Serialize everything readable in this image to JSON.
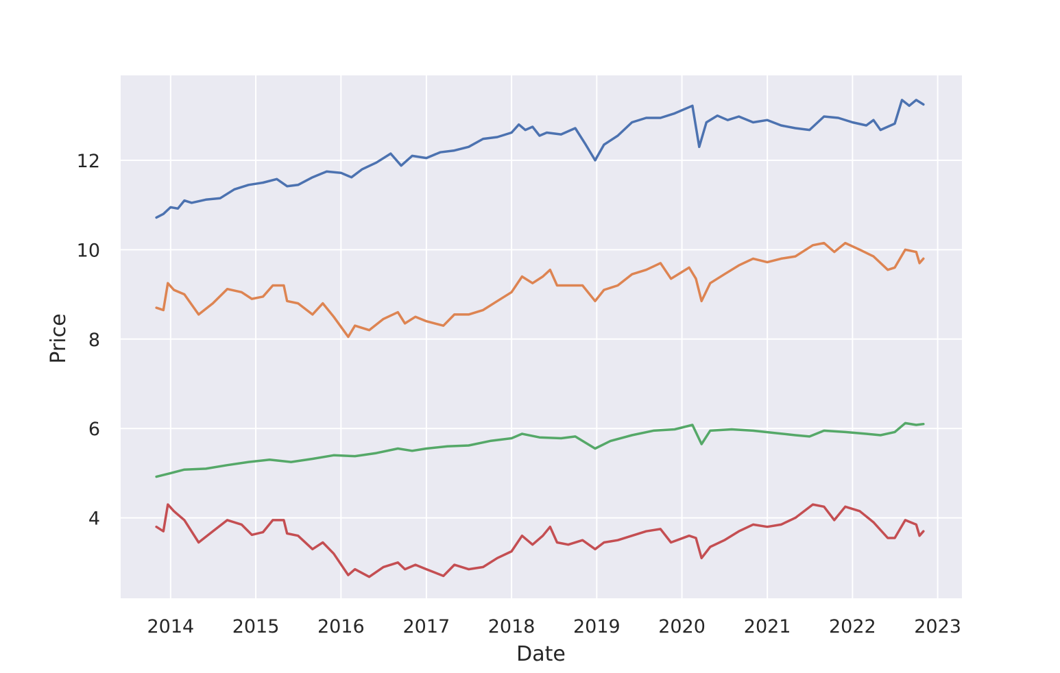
{
  "chart_data": {
    "type": "line",
    "title": "",
    "xlabel": "Date",
    "ylabel": "Price",
    "xlim": [
      "2013-06-01",
      "2023-04-15"
    ],
    "ylim": [
      2.2,
      13.9
    ],
    "grid": true,
    "legend": "none",
    "x_ticks": [
      "2014",
      "2015",
      "2016",
      "2017",
      "2018",
      "2019",
      "2020",
      "2021",
      "2022",
      "2023"
    ],
    "y_ticks": [
      "4",
      "6",
      "8",
      "10",
      "12"
    ],
    "colors": {
      "background": "#eaeaf2",
      "grid": "#ffffff",
      "series": [
        "#4c72b0",
        "#dd8452",
        "#55a868",
        "#c44e52"
      ]
    },
    "series": [
      {
        "points": [
          [
            "2013-11-01",
            10.72
          ],
          [
            "2013-12-01",
            10.8
          ],
          [
            "2014-01-01",
            10.95
          ],
          [
            "2014-02-01",
            10.92
          ],
          [
            "2014-03-01",
            11.1
          ],
          [
            "2014-04-01",
            11.05
          ],
          [
            "2014-06-01",
            11.12
          ],
          [
            "2014-08-01",
            11.15
          ],
          [
            "2014-10-01",
            11.35
          ],
          [
            "2014-12-01",
            11.45
          ],
          [
            "2015-02-01",
            11.5
          ],
          [
            "2015-04-01",
            11.58
          ],
          [
            "2015-05-15",
            11.42
          ],
          [
            "2015-07-01",
            11.45
          ],
          [
            "2015-09-01",
            11.62
          ],
          [
            "2015-11-01",
            11.75
          ],
          [
            "2016-01-01",
            11.72
          ],
          [
            "2016-02-15",
            11.62
          ],
          [
            "2016-04-01",
            11.8
          ],
          [
            "2016-06-01",
            11.95
          ],
          [
            "2016-08-01",
            12.15
          ],
          [
            "2016-09-15",
            11.88
          ],
          [
            "2016-11-01",
            12.1
          ],
          [
            "2017-01-01",
            12.05
          ],
          [
            "2017-03-01",
            12.18
          ],
          [
            "2017-05-01",
            12.22
          ],
          [
            "2017-07-01",
            12.3
          ],
          [
            "2017-09-01",
            12.48
          ],
          [
            "2017-11-01",
            12.52
          ],
          [
            "2018-01-01",
            12.62
          ],
          [
            "2018-02-01",
            12.8
          ],
          [
            "2018-03-01",
            12.68
          ],
          [
            "2018-04-01",
            12.75
          ],
          [
            "2018-05-01",
            12.55
          ],
          [
            "2018-06-01",
            12.62
          ],
          [
            "2018-08-01",
            12.58
          ],
          [
            "2018-10-01",
            12.72
          ],
          [
            "2018-11-15",
            12.35
          ],
          [
            "2018-12-25",
            12.0
          ],
          [
            "2019-02-01",
            12.35
          ],
          [
            "2019-04-01",
            12.55
          ],
          [
            "2019-06-01",
            12.85
          ],
          [
            "2019-08-01",
            12.95
          ],
          [
            "2019-10-01",
            12.95
          ],
          [
            "2019-12-01",
            13.05
          ],
          [
            "2020-02-15",
            13.22
          ],
          [
            "2020-03-15",
            12.3
          ],
          [
            "2020-04-15",
            12.85
          ],
          [
            "2020-06-01",
            13.0
          ],
          [
            "2020-07-15",
            12.9
          ],
          [
            "2020-09-01",
            12.98
          ],
          [
            "2020-11-01",
            12.85
          ],
          [
            "2021-01-01",
            12.9
          ],
          [
            "2021-03-01",
            12.78
          ],
          [
            "2021-05-01",
            12.72
          ],
          [
            "2021-07-01",
            12.68
          ],
          [
            "2021-09-01",
            12.98
          ],
          [
            "2021-11-01",
            12.95
          ],
          [
            "2022-01-01",
            12.85
          ],
          [
            "2022-03-01",
            12.78
          ],
          [
            "2022-04-01",
            12.9
          ],
          [
            "2022-05-01",
            12.68
          ],
          [
            "2022-07-01",
            12.82
          ],
          [
            "2022-08-01",
            13.35
          ],
          [
            "2022-09-01",
            13.22
          ],
          [
            "2022-10-01",
            13.35
          ],
          [
            "2022-11-01",
            13.25
          ]
        ]
      },
      {
        "points": [
          [
            "2013-11-01",
            8.7
          ],
          [
            "2013-12-01",
            8.65
          ],
          [
            "2013-12-20",
            9.25
          ],
          [
            "2014-01-15",
            9.1
          ],
          [
            "2014-03-01",
            9.0
          ],
          [
            "2014-05-01",
            8.55
          ],
          [
            "2014-07-01",
            8.8
          ],
          [
            "2014-09-01",
            9.12
          ],
          [
            "2014-11-01",
            9.05
          ],
          [
            "2014-12-15",
            8.9
          ],
          [
            "2015-02-01",
            8.95
          ],
          [
            "2015-03-15",
            9.2
          ],
          [
            "2015-05-01",
            9.2
          ],
          [
            "2015-05-15",
            8.85
          ],
          [
            "2015-07-01",
            8.8
          ],
          [
            "2015-09-01",
            8.55
          ],
          [
            "2015-10-15",
            8.8
          ],
          [
            "2015-12-01",
            8.5
          ],
          [
            "2016-02-01",
            8.05
          ],
          [
            "2016-03-01",
            8.3
          ],
          [
            "2016-05-01",
            8.2
          ],
          [
            "2016-07-01",
            8.45
          ],
          [
            "2016-09-01",
            8.6
          ],
          [
            "2016-10-01",
            8.35
          ],
          [
            "2016-11-15",
            8.5
          ],
          [
            "2017-01-01",
            8.4
          ],
          [
            "2017-03-15",
            8.3
          ],
          [
            "2017-05-01",
            8.55
          ],
          [
            "2017-07-01",
            8.55
          ],
          [
            "2017-09-01",
            8.65
          ],
          [
            "2017-11-01",
            8.85
          ],
          [
            "2018-01-01",
            9.05
          ],
          [
            "2018-02-15",
            9.4
          ],
          [
            "2018-04-01",
            9.25
          ],
          [
            "2018-05-15",
            9.4
          ],
          [
            "2018-06-15",
            9.55
          ],
          [
            "2018-07-15",
            9.2
          ],
          [
            "2018-09-01",
            9.2
          ],
          [
            "2018-11-01",
            9.2
          ],
          [
            "2018-12-25",
            8.85
          ],
          [
            "2019-02-01",
            9.1
          ],
          [
            "2019-04-01",
            9.2
          ],
          [
            "2019-06-01",
            9.45
          ],
          [
            "2019-08-01",
            9.55
          ],
          [
            "2019-10-01",
            9.7
          ],
          [
            "2019-11-15",
            9.35
          ],
          [
            "2020-02-01",
            9.6
          ],
          [
            "2020-03-01",
            9.35
          ],
          [
            "2020-03-25",
            8.85
          ],
          [
            "2020-05-01",
            9.25
          ],
          [
            "2020-07-01",
            9.45
          ],
          [
            "2020-09-01",
            9.65
          ],
          [
            "2020-11-01",
            9.8
          ],
          [
            "2021-01-01",
            9.72
          ],
          [
            "2021-03-01",
            9.8
          ],
          [
            "2021-05-01",
            9.85
          ],
          [
            "2021-07-15",
            10.1
          ],
          [
            "2021-09-01",
            10.15
          ],
          [
            "2021-10-15",
            9.95
          ],
          [
            "2021-12-01",
            10.15
          ],
          [
            "2022-02-01",
            10.0
          ],
          [
            "2022-04-01",
            9.85
          ],
          [
            "2022-06-01",
            9.55
          ],
          [
            "2022-07-01",
            9.6
          ],
          [
            "2022-08-15",
            10.0
          ],
          [
            "2022-10-01",
            9.95
          ],
          [
            "2022-10-15",
            9.7
          ],
          [
            "2022-11-01",
            9.8
          ]
        ]
      },
      {
        "points": [
          [
            "2013-11-01",
            4.92
          ],
          [
            "2014-01-01",
            5.0
          ],
          [
            "2014-03-01",
            5.08
          ],
          [
            "2014-06-01",
            5.1
          ],
          [
            "2014-09-01",
            5.18
          ],
          [
            "2014-12-01",
            5.25
          ],
          [
            "2015-03-01",
            5.3
          ],
          [
            "2015-06-01",
            5.25
          ],
          [
            "2015-09-01",
            5.32
          ],
          [
            "2015-12-01",
            5.4
          ],
          [
            "2016-03-01",
            5.38
          ],
          [
            "2016-06-01",
            5.45
          ],
          [
            "2016-09-01",
            5.55
          ],
          [
            "2016-11-01",
            5.5
          ],
          [
            "2017-01-01",
            5.55
          ],
          [
            "2017-04-01",
            5.6
          ],
          [
            "2017-07-01",
            5.62
          ],
          [
            "2017-10-01",
            5.72
          ],
          [
            "2018-01-01",
            5.78
          ],
          [
            "2018-02-15",
            5.88
          ],
          [
            "2018-05-01",
            5.8
          ],
          [
            "2018-08-01",
            5.78
          ],
          [
            "2018-10-01",
            5.82
          ],
          [
            "2018-12-25",
            5.55
          ],
          [
            "2019-03-01",
            5.72
          ],
          [
            "2019-06-01",
            5.85
          ],
          [
            "2019-09-01",
            5.95
          ],
          [
            "2019-12-01",
            5.98
          ],
          [
            "2020-02-15",
            6.08
          ],
          [
            "2020-03-25",
            5.65
          ],
          [
            "2020-05-01",
            5.95
          ],
          [
            "2020-08-01",
            5.98
          ],
          [
            "2020-11-01",
            5.95
          ],
          [
            "2021-02-01",
            5.9
          ],
          [
            "2021-05-01",
            5.85
          ],
          [
            "2021-07-01",
            5.82
          ],
          [
            "2021-09-01",
            5.95
          ],
          [
            "2021-12-01",
            5.92
          ],
          [
            "2022-03-01",
            5.88
          ],
          [
            "2022-05-01",
            5.85
          ],
          [
            "2022-07-01",
            5.92
          ],
          [
            "2022-08-15",
            6.12
          ],
          [
            "2022-10-01",
            6.08
          ],
          [
            "2022-11-01",
            6.1
          ]
        ]
      },
      {
        "points": [
          [
            "2013-11-01",
            3.8
          ],
          [
            "2013-12-01",
            3.7
          ],
          [
            "2013-12-20",
            4.3
          ],
          [
            "2014-01-15",
            4.15
          ],
          [
            "2014-03-01",
            3.95
          ],
          [
            "2014-05-01",
            3.45
          ],
          [
            "2014-07-01",
            3.7
          ],
          [
            "2014-09-01",
            3.95
          ],
          [
            "2014-11-01",
            3.85
          ],
          [
            "2014-12-15",
            3.62
          ],
          [
            "2015-02-01",
            3.68
          ],
          [
            "2015-03-15",
            3.95
          ],
          [
            "2015-05-01",
            3.95
          ],
          [
            "2015-05-15",
            3.65
          ],
          [
            "2015-07-01",
            3.6
          ],
          [
            "2015-09-01",
            3.3
          ],
          [
            "2015-10-15",
            3.45
          ],
          [
            "2015-12-01",
            3.2
          ],
          [
            "2016-02-01",
            2.72
          ],
          [
            "2016-03-01",
            2.85
          ],
          [
            "2016-05-01",
            2.68
          ],
          [
            "2016-07-01",
            2.9
          ],
          [
            "2016-09-01",
            3.0
          ],
          [
            "2016-10-01",
            2.85
          ],
          [
            "2016-11-15",
            2.95
          ],
          [
            "2017-01-01",
            2.85
          ],
          [
            "2017-03-15",
            2.7
          ],
          [
            "2017-05-01",
            2.95
          ],
          [
            "2017-07-01",
            2.85
          ],
          [
            "2017-09-01",
            2.9
          ],
          [
            "2017-11-01",
            3.1
          ],
          [
            "2018-01-01",
            3.25
          ],
          [
            "2018-02-15",
            3.6
          ],
          [
            "2018-04-01",
            3.4
          ],
          [
            "2018-05-15",
            3.6
          ],
          [
            "2018-06-15",
            3.8
          ],
          [
            "2018-07-15",
            3.45
          ],
          [
            "2018-09-01",
            3.4
          ],
          [
            "2018-11-01",
            3.5
          ],
          [
            "2018-12-25",
            3.3
          ],
          [
            "2019-02-01",
            3.45
          ],
          [
            "2019-04-01",
            3.5
          ],
          [
            "2019-06-01",
            3.6
          ],
          [
            "2019-08-01",
            3.7
          ],
          [
            "2019-10-01",
            3.75
          ],
          [
            "2019-11-15",
            3.45
          ],
          [
            "2020-02-01",
            3.6
          ],
          [
            "2020-03-01",
            3.55
          ],
          [
            "2020-03-25",
            3.1
          ],
          [
            "2020-05-01",
            3.35
          ],
          [
            "2020-07-01",
            3.5
          ],
          [
            "2020-09-01",
            3.7
          ],
          [
            "2020-11-01",
            3.85
          ],
          [
            "2021-01-01",
            3.8
          ],
          [
            "2021-03-01",
            3.85
          ],
          [
            "2021-05-01",
            4.0
          ],
          [
            "2021-07-15",
            4.3
          ],
          [
            "2021-09-01",
            4.25
          ],
          [
            "2021-10-15",
            3.95
          ],
          [
            "2021-12-01",
            4.25
          ],
          [
            "2022-02-01",
            4.15
          ],
          [
            "2022-04-01",
            3.9
          ],
          [
            "2022-06-01",
            3.55
          ],
          [
            "2022-07-01",
            3.55
          ],
          [
            "2022-08-15",
            3.95
          ],
          [
            "2022-10-01",
            3.85
          ],
          [
            "2022-10-15",
            3.6
          ],
          [
            "2022-11-01",
            3.7
          ]
        ]
      }
    ]
  }
}
